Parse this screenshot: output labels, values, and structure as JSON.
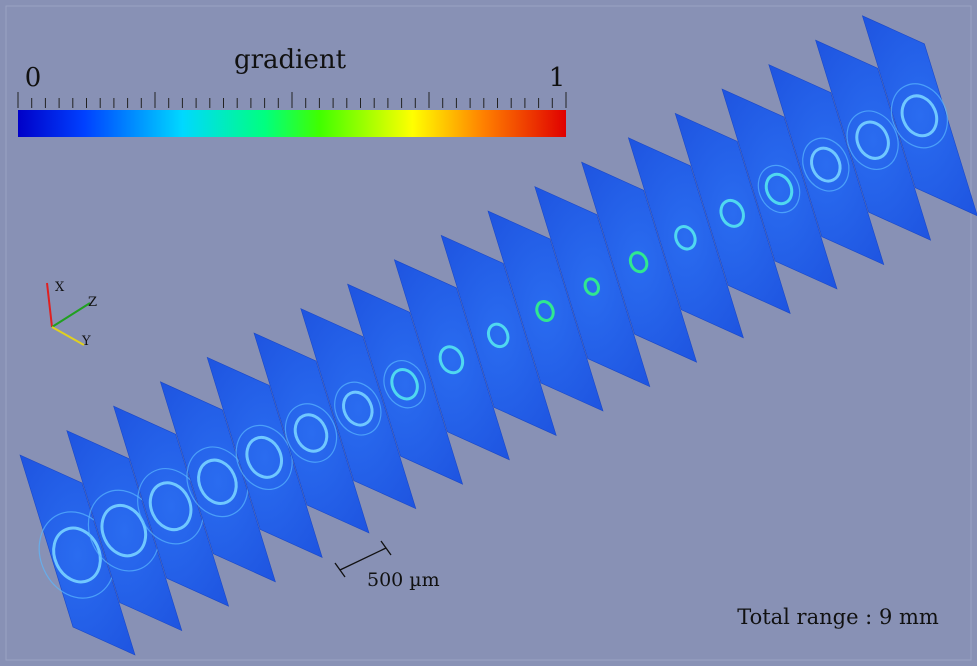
{
  "colorbar": {
    "title": "gradient",
    "min_label": "0",
    "max_label": "1"
  },
  "axes": {
    "x": "X",
    "y": "Y",
    "z": "Z"
  },
  "scale_bar": "500 µm",
  "total_range": "Total range : 9 mm"
}
